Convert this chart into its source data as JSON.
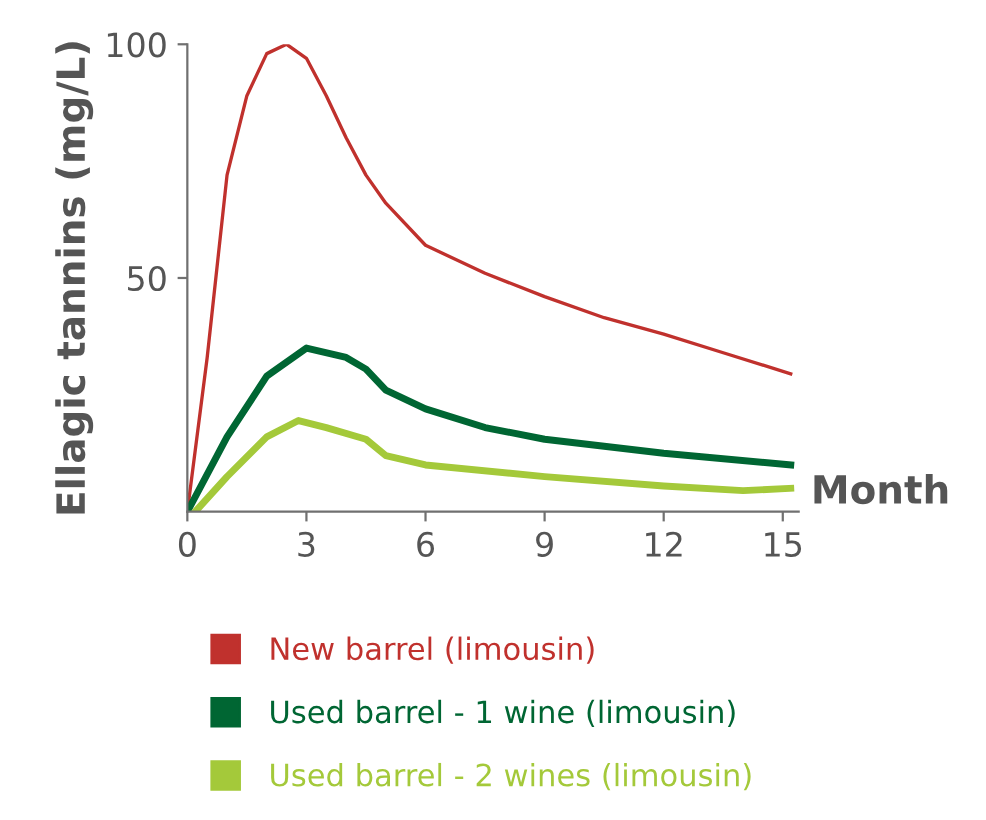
{
  "chart_data": {
    "type": "line",
    "xlabel": "Month",
    "ylabel": "Ellagic tannins (mg/L)",
    "xlim": [
      0,
      15.4
    ],
    "ylim": [
      0,
      100
    ],
    "xticks": [
      0,
      3,
      6,
      9,
      12,
      15
    ],
    "yticks": [
      50,
      100
    ],
    "grid": false,
    "legend": "bottom",
    "marker": "none",
    "line_style": "solid",
    "series": [
      {
        "name": "New barrel (limousin)",
        "color": "#c0312d",
        "x": [
          0,
          0.5,
          1,
          1.5,
          2,
          2.5,
          3,
          3.5,
          4,
          4.5,
          5,
          6,
          7.5,
          9,
          10.5,
          12,
          13.5,
          15.2
        ],
        "values": [
          0,
          33,
          72,
          89,
          98,
          100,
          97,
          89,
          80,
          72,
          66,
          57,
          51,
          46,
          41.5,
          38,
          34,
          29.5
        ]
      },
      {
        "name": "Used barrel - 1 wine (limousin)",
        "color": "#006633",
        "x": [
          0,
          1,
          2,
          3,
          4,
          4.5,
          5,
          6,
          7.5,
          9,
          12,
          15.2
        ],
        "values": [
          0,
          16,
          29,
          35,
          33,
          30.5,
          26,
          22,
          18,
          15.5,
          12.5,
          10
        ]
      },
      {
        "name": "Used barrel - 2 wines (limousin)",
        "color": "#a4c93a",
        "x": [
          0.2,
          1,
          2,
          2.8,
          3.5,
          4.5,
          5,
          6,
          9,
          12,
          14,
          15.2
        ],
        "values": [
          0,
          7.5,
          16,
          19.5,
          18,
          15.5,
          12,
          10,
          7.5,
          5.5,
          4.5,
          5
        ]
      }
    ]
  }
}
